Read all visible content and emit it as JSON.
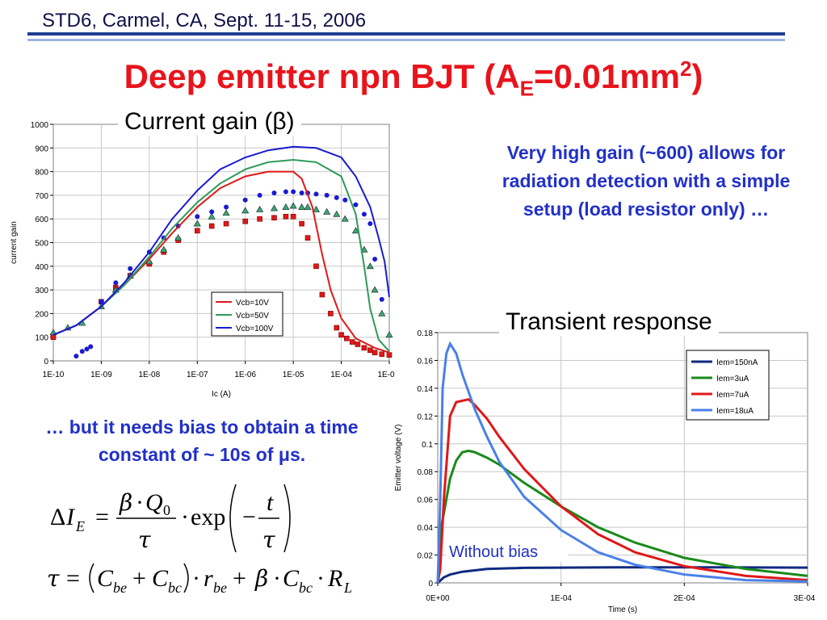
{
  "header": {
    "conference": "STD6, Carmel, CA, Sept. 11-15, 2006",
    "title_main": "Deep emitter npn BJT (A",
    "title_sub": "E",
    "title_mid": "=0.01mm",
    "title_sup": "2",
    "title_end": ")"
  },
  "notes": {
    "gain_note": "Very high gain (~600) allows for radiation detection with a simple setup (load resistor only) …",
    "bias_note": "… but it needs bias to obtain a time constant of ~ 10s of μs."
  },
  "equations": {
    "eq1": "ΔI_E = β·Q_0/τ · exp(−t/τ)",
    "eq2": "τ = (C_be + C_bc)·r_be + β·C_bc·R_L"
  },
  "colors": {
    "title": "#e8141c",
    "note": "#2230c8",
    "series_red": "#e01818",
    "series_green": "#2e9a5c",
    "series_blue": "#1a1ad0"
  },
  "chart_data": [
    {
      "type": "line",
      "title": "Current gain (β)",
      "xlabel": "Ic (A)",
      "ylabel": "current gain",
      "xscale": "log",
      "xlim": [
        1e-10,
        0.001
      ],
      "ylim": [
        0,
        1000
      ],
      "x_ticks": [
        "1E-10",
        "1E-09",
        "1E-08",
        "1E-07",
        "1E-06",
        "1E-05",
        "1E-04",
        "1E-0"
      ],
      "y_ticks": [
        "0",
        "100",
        "200",
        "300",
        "400",
        "500",
        "600",
        "700",
        "800",
        "900",
        "1000"
      ],
      "grid": true,
      "legend_position": "center-right",
      "series": [
        {
          "name": "Vcb=10V",
          "color": "#e01818",
          "x": [
            1e-10,
            3e-10,
            1e-09,
            3e-09,
            1e-08,
            3e-08,
            1e-07,
            3e-07,
            1e-06,
            3e-06,
            1e-05,
            1.5e-05,
            2.5e-05,
            4e-05,
            6e-05,
            0.0001,
            0.0002,
            0.0005,
            0.001
          ],
          "y": [
            110,
            150,
            230,
            320,
            430,
            540,
            650,
            730,
            780,
            800,
            800,
            770,
            650,
            450,
            300,
            180,
            95,
            55,
            35
          ]
        },
        {
          "name": "Vcb=50V",
          "color": "#2e9a5c",
          "x": [
            1e-10,
            3e-10,
            1e-09,
            3e-09,
            1e-08,
            3e-08,
            1e-07,
            3e-07,
            1e-06,
            3e-06,
            1e-05,
            3e-05,
            0.0001,
            0.0002,
            0.0003,
            0.0004,
            0.0006,
            0.001
          ],
          "y": [
            110,
            150,
            230,
            320,
            440,
            560,
            670,
            750,
            810,
            840,
            850,
            840,
            780,
            620,
            400,
            220,
            90,
            40
          ]
        },
        {
          "name": "Vcb=100V",
          "color": "#1a1ad0",
          "x": [
            1e-10,
            3e-10,
            1e-09,
            3e-09,
            1e-08,
            3e-08,
            1e-07,
            3e-07,
            1e-06,
            3e-06,
            1e-05,
            3e-05,
            0.0001,
            0.0002,
            0.0004,
            0.0006,
            0.0008,
            0.001
          ],
          "y": [
            110,
            150,
            230,
            330,
            460,
            600,
            720,
            810,
            860,
            890,
            905,
            900,
            860,
            780,
            650,
            520,
            420,
            270
          ]
        }
      ],
      "scatter_series": [
        {
          "name": "measured (red squares)",
          "color": "#e01818",
          "marker": "square",
          "x": [
            1e-10,
            1e-09,
            2e-09,
            4e-09,
            1e-08,
            2e-08,
            4e-08,
            1e-07,
            2e-07,
            4e-07,
            1e-06,
            2e-06,
            4e-06,
            7e-06,
            1e-05,
            1.5e-05,
            2e-05,
            3e-05,
            4e-05,
            6e-05,
            8e-05,
            0.0001,
            0.00013,
            0.00017,
            0.00022,
            0.0003,
            0.0004,
            0.0005,
            0.0007,
            0.001
          ],
          "y": [
            100,
            250,
            310,
            360,
            410,
            460,
            510,
            550,
            570,
            580,
            590,
            600,
            605,
            610,
            610,
            580,
            520,
            400,
            280,
            200,
            140,
            110,
            95,
            80,
            70,
            55,
            45,
            35,
            28,
            25
          ]
        },
        {
          "name": "measured (green triangles)",
          "color": "#2e9a5c",
          "marker": "triangle",
          "x": [
            1e-10,
            2e-10,
            4e-10,
            1e-09,
            2e-09,
            4e-09,
            1e-08,
            2e-08,
            4e-08,
            1e-07,
            2e-07,
            4e-07,
            1e-06,
            2e-06,
            4e-06,
            7e-06,
            1e-05,
            1.5e-05,
            2e-05,
            3e-05,
            5e-05,
            8e-05,
            0.00012,
            0.0002,
            0.0003,
            0.0004,
            0.0005,
            0.0007,
            0.001
          ],
          "y": [
            120,
            140,
            160,
            230,
            300,
            360,
            420,
            470,
            520,
            580,
            610,
            625,
            635,
            640,
            645,
            650,
            655,
            650,
            650,
            640,
            630,
            620,
            600,
            550,
            470,
            400,
            300,
            200,
            110
          ]
        },
        {
          "name": "measured (blue circles)",
          "color": "#1a1ad0",
          "marker": "circle",
          "x": [
            3e-10,
            4e-10,
            5e-10,
            6e-10,
            1e-09,
            2e-09,
            4e-09,
            1e-08,
            2e-08,
            4e-08,
            1e-07,
            2e-07,
            4e-07,
            1e-06,
            2e-06,
            4e-06,
            7e-06,
            1e-05,
            1.5e-05,
            2e-05,
            3e-05,
            5e-05,
            8e-05,
            0.00012,
            0.0002,
            0.0003,
            0.0004,
            0.0005,
            0.0007
          ],
          "y": [
            20,
            40,
            50,
            60,
            250,
            330,
            390,
            460,
            520,
            570,
            610,
            630,
            650,
            680,
            700,
            710,
            715,
            715,
            710,
            710,
            705,
            700,
            690,
            680,
            660,
            620,
            580,
            430,
            260
          ]
        }
      ]
    },
    {
      "type": "line",
      "title": "Transient response",
      "xlabel": "Time (s)",
      "ylabel": "Emitter voltage (V)",
      "xlim": [
        0,
        0.0003
      ],
      "ylim": [
        0,
        0.18
      ],
      "x_ticks": [
        "0E+00",
        "1E-04",
        "2E-04",
        "3E-04"
      ],
      "y_ticks": [
        "0",
        "0.02",
        "0.04",
        "0.06",
        "0.08",
        "0.1",
        "0.12",
        "0.14",
        "0.16",
        "0.18"
      ],
      "grid": true,
      "legend_position": "top-right",
      "annotation": "Without bias",
      "series": [
        {
          "name": "Iem=150nA",
          "color": "#102a80",
          "x": [
            0,
            5e-06,
            1e-05,
            2e-05,
            4e-05,
            7e-05,
            0.0001,
            0.00015,
            0.0002,
            0.00025,
            0.0003
          ],
          "y": [
            0,
            0.004,
            0.006,
            0.008,
            0.01,
            0.0108,
            0.011,
            0.0112,
            0.0112,
            0.0111,
            0.011
          ]
        },
        {
          "name": "Iem=3uA",
          "color": "#1a8a1a",
          "x": [
            0,
            2e-06,
            5e-06,
            1e-05,
            1.5e-05,
            2e-05,
            2.5e-05,
            3e-05,
            4e-05,
            5e-05,
            7e-05,
            0.0001,
            0.00013,
            0.00016,
            0.0002,
            0.00025,
            0.0003
          ],
          "y": [
            0,
            0.037,
            0.05,
            0.075,
            0.088,
            0.094,
            0.095,
            0.094,
            0.09,
            0.085,
            0.072,
            0.055,
            0.04,
            0.029,
            0.018,
            0.01,
            0.005
          ]
        },
        {
          "name": "Iem=7uA",
          "color": "#e01818",
          "x": [
            0,
            2e-06,
            5e-06,
            1e-05,
            1.5e-05,
            2.5e-05,
            3e-05,
            4e-05,
            5e-05,
            7e-05,
            0.0001,
            0.00013,
            0.00016,
            0.0002,
            0.00025,
            0.0003
          ],
          "y": [
            0,
            0.01,
            0.06,
            0.12,
            0.13,
            0.132,
            0.128,
            0.118,
            0.105,
            0.082,
            0.055,
            0.035,
            0.022,
            0.012,
            0.005,
            0.002
          ]
        },
        {
          "name": "Iem=18uA",
          "color": "#4a80e8",
          "x": [
            0,
            2e-06,
            4e-06,
            7e-06,
            1e-05,
            1.5e-05,
            2e-05,
            3e-05,
            4e-05,
            5e-05,
            7e-05,
            0.0001,
            0.00013,
            0.00016,
            0.0002,
            0.00025,
            0.0003
          ],
          "y": [
            0,
            0.06,
            0.14,
            0.165,
            0.172,
            0.165,
            0.15,
            0.125,
            0.105,
            0.087,
            0.062,
            0.038,
            0.022,
            0.013,
            0.006,
            0.002,
            0.001
          ]
        }
      ]
    }
  ]
}
